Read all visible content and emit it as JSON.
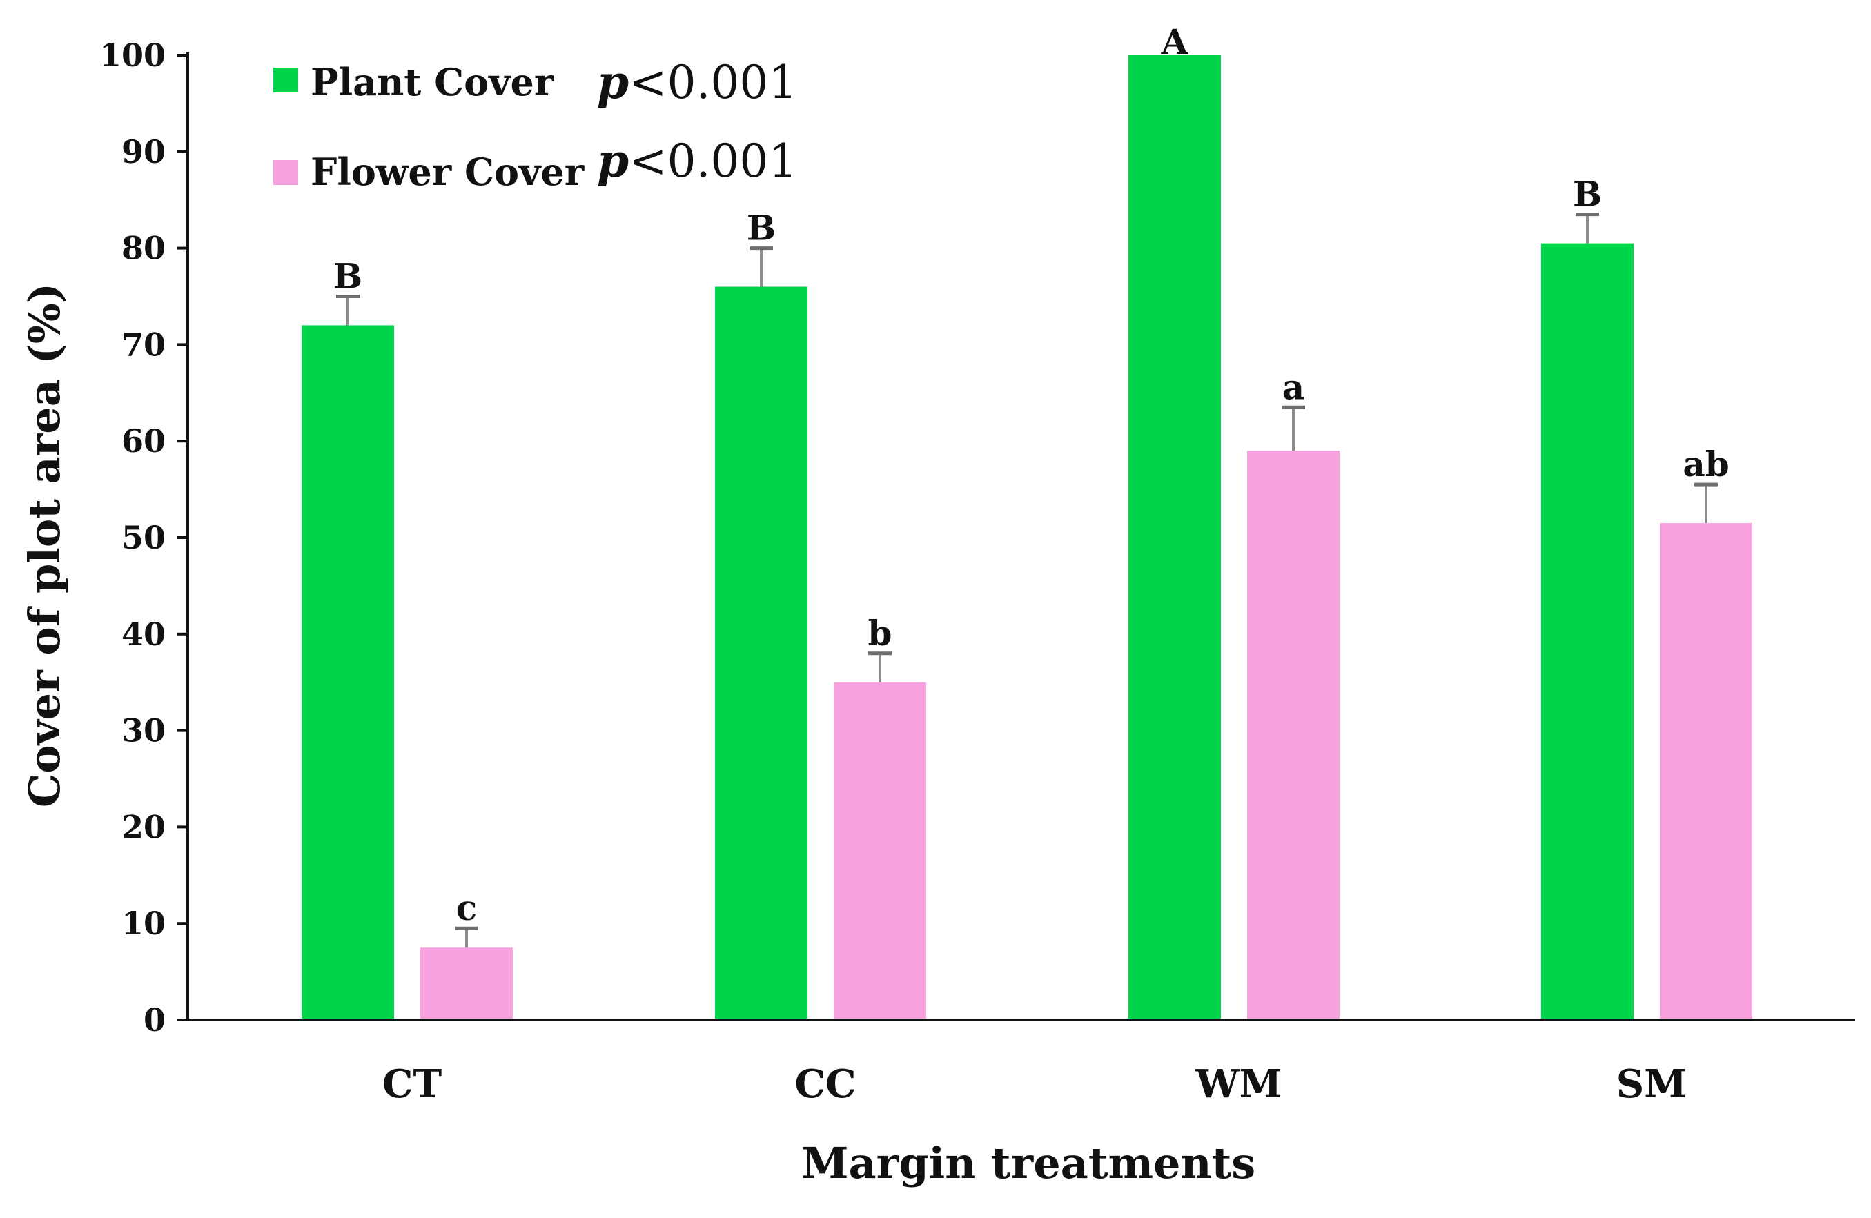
{
  "chart_data": {
    "type": "bar",
    "title": "",
    "xlabel": "Margin treatments",
    "ylabel": "Cover of plot area (%)",
    "ylim": [
      0,
      100
    ],
    "yticks": [
      0,
      10,
      20,
      30,
      40,
      50,
      60,
      70,
      80,
      90,
      100
    ],
    "categories": [
      "CT",
      "CC",
      "WM",
      "SM"
    ],
    "legend_position": "top-left",
    "series": [
      {
        "name": "Plant Cover",
        "color": "#00d44b",
        "p_symbol": "p",
        "p_rest": "<0.001",
        "values": [
          72,
          76,
          100,
          80.5
        ],
        "errors": [
          3,
          4,
          0,
          3
        ],
        "letters": [
          "B",
          "B",
          "A",
          "B"
        ]
      },
      {
        "name": "Flower Cover",
        "color": "#f7a1de",
        "p_symbol": "p",
        "p_rest": "<0.001",
        "values": [
          7.5,
          35,
          59,
          51.5
        ],
        "errors": [
          2,
          3,
          4.5,
          4
        ],
        "letters": [
          "c",
          "b",
          "a",
          "ab"
        ]
      }
    ]
  }
}
